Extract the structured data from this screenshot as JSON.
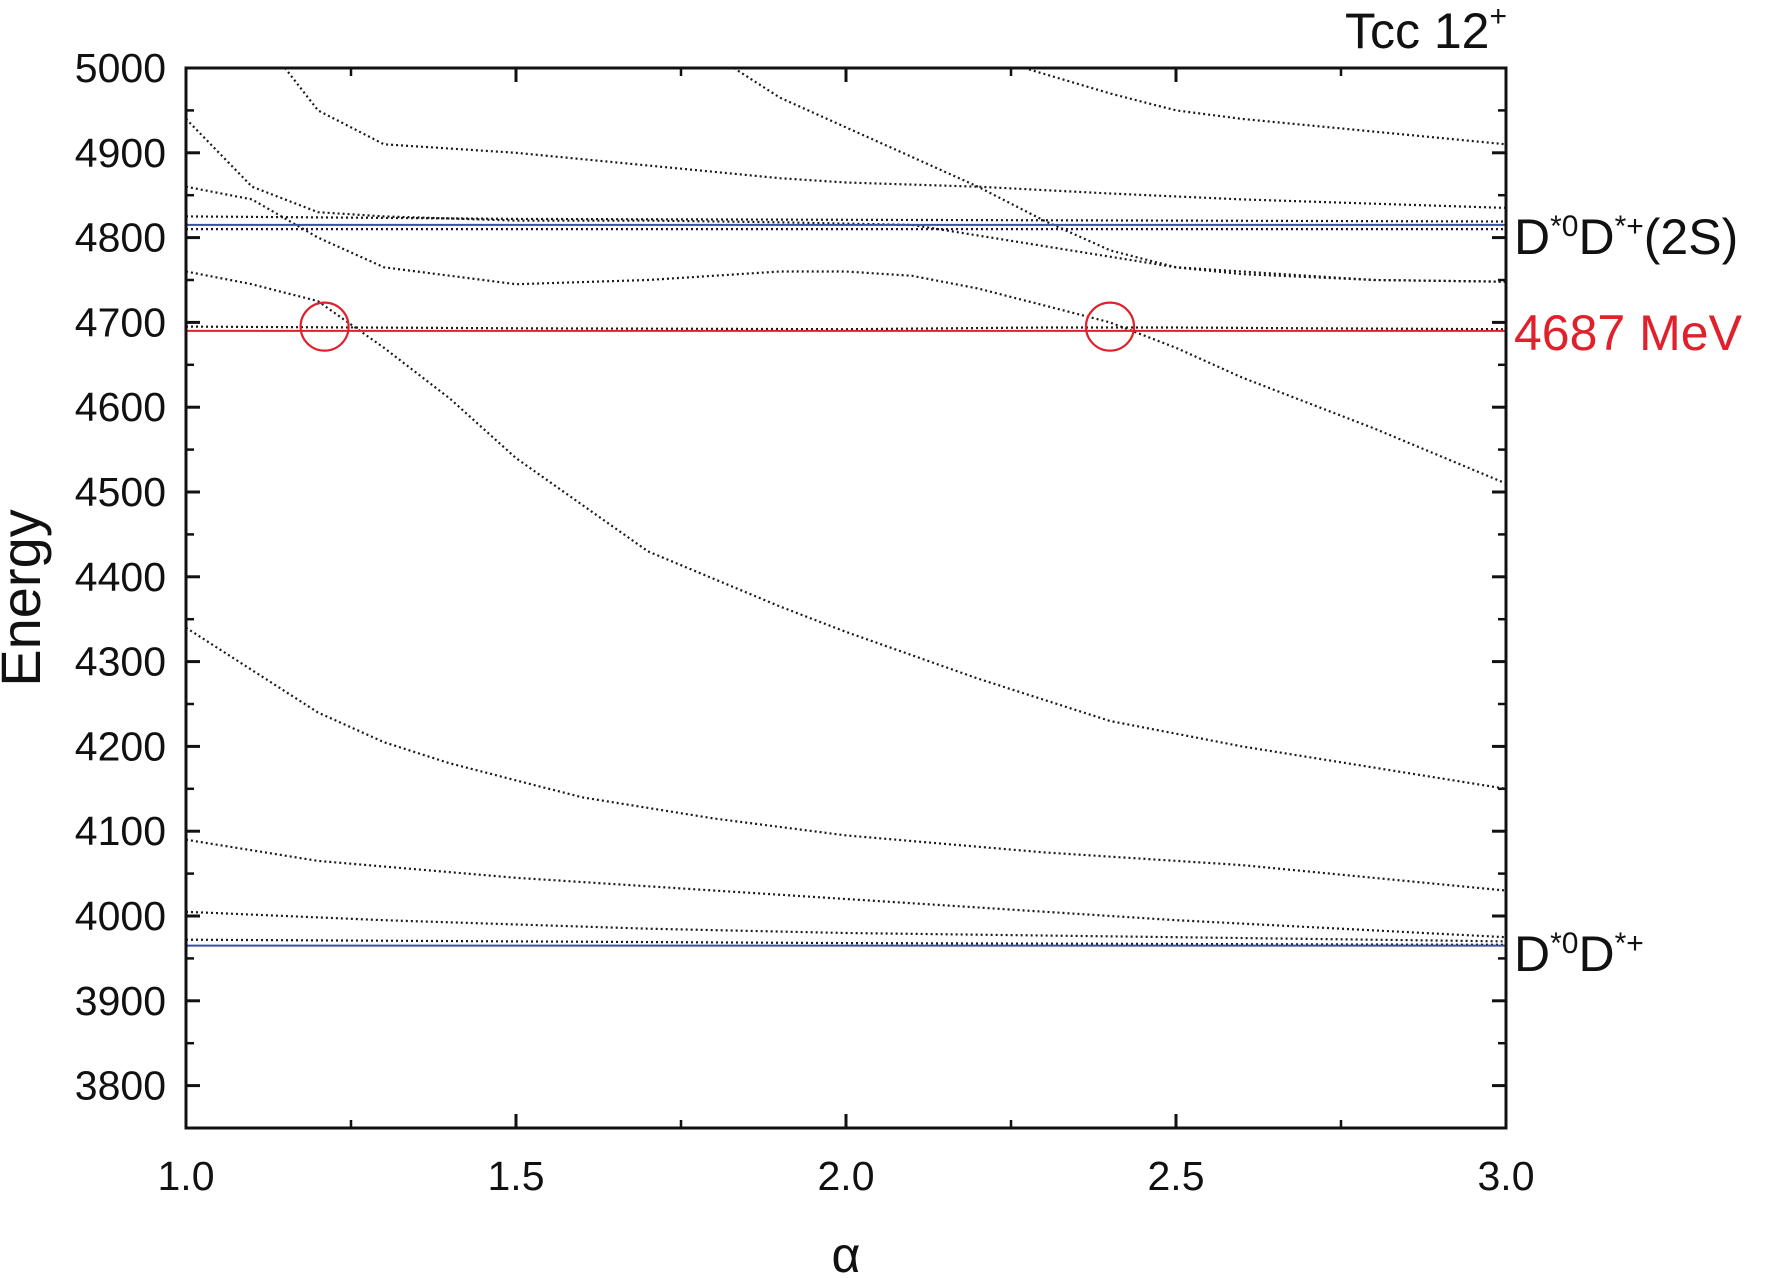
{
  "chart_data": {
    "type": "line",
    "title": "Tcc 12",
    "title_superscript": "+",
    "xlabel": "α",
    "ylabel": "Energy",
    "xlim": [
      1.0,
      3.0
    ],
    "ylim": [
      3750,
      5000
    ],
    "xticks": [
      "1.0",
      "1.5",
      "2.0",
      "2.5",
      "3.0"
    ],
    "yticks": [
      "3800",
      "3900",
      "4000",
      "4100",
      "4200",
      "4300",
      "4400",
      "4500",
      "4600",
      "4700",
      "4800",
      "4900",
      "5000"
    ],
    "grid": false,
    "reference_lines": [
      {
        "y": 4815,
        "color": "#3a4fa0",
        "label": "D*0D*+(2S)"
      },
      {
        "y": 3965,
        "color": "#3a4fa0",
        "label": "D*0D*+"
      },
      {
        "y": 4690,
        "color": "#e0202a",
        "label": "4687 MeV"
      }
    ],
    "right_labels": {
      "upper": {
        "base1": "D",
        "sup1": "*0",
        "base2": "D",
        "sup2": "*+",
        "tail": "(2S)"
      },
      "lower": {
        "base1": "D",
        "sup1": "*0",
        "base2": "D",
        "sup2": "*+",
        "tail": ""
      },
      "red": "4687 MeV"
    },
    "highlight_circles": [
      {
        "x": 1.21,
        "y": 4695
      },
      {
        "x": 2.4,
        "y": 4695
      }
    ],
    "series": [
      {
        "style": "dotted",
        "x": [
          1.0,
          1.1,
          1.2,
          1.3,
          1.4,
          1.6,
          1.8,
          2.0,
          2.3,
          2.6,
          3.0
        ],
        "y": [
          4340,
          4290,
          4240,
          4205,
          4180,
          4140,
          4115,
          4095,
          4075,
          4060,
          4030
        ]
      },
      {
        "style": "dotted",
        "x": [
          1.0,
          1.2,
          1.5,
          2.0,
          2.5,
          3.0
        ],
        "y": [
          4090,
          4065,
          4045,
          4020,
          3995,
          3975
        ]
      },
      {
        "style": "dotted",
        "x": [
          1.0,
          1.3,
          1.7,
          2.0,
          2.5,
          3.0
        ],
        "y": [
          4005,
          3995,
          3985,
          3980,
          3975,
          3970
        ]
      },
      {
        "style": "dotted",
        "x": [
          1.0,
          1.5,
          2.0,
          2.5,
          3.0
        ],
        "y": [
          3972,
          3970,
          3968,
          3967,
          3966
        ]
      },
      {
        "style": "dotted",
        "x": [
          1.0,
          1.1,
          1.2,
          1.3,
          1.4,
          1.5,
          1.7,
          1.9,
          2.0,
          2.2,
          2.4,
          2.6,
          2.8,
          3.0
        ],
        "y": [
          4760,
          4745,
          4725,
          4670,
          4610,
          4540,
          4430,
          4365,
          4335,
          4280,
          4230,
          4200,
          4175,
          4150
        ]
      },
      {
        "style": "dotted",
        "x": [
          1.0,
          1.1,
          1.2,
          1.3,
          1.5,
          1.7,
          1.9,
          2.0,
          2.1,
          2.2,
          2.3,
          2.4,
          2.5,
          2.6,
          2.8,
          3.0
        ],
        "y": [
          4860,
          4845,
          4800,
          4765,
          4745,
          4750,
          4760,
          4760,
          4755,
          4740,
          4720,
          4700,
          4670,
          4635,
          4575,
          4510
        ]
      },
      {
        "style": "dotted",
        "x": [
          1.0,
          1.1,
          1.2,
          1.3,
          1.5,
          1.7,
          1.9,
          2.1,
          2.3,
          2.5,
          2.8,
          3.0
        ],
        "y": [
          4940,
          4860,
          4830,
          4825,
          4820,
          4820,
          4818,
          4815,
          4790,
          4765,
          4750,
          4748
        ]
      },
      {
        "style": "dotted",
        "x": [
          1.0,
          1.5,
          2.0,
          2.3,
          2.5,
          2.7,
          3.0
        ],
        "y": [
          4695,
          4693,
          4692,
          4694,
          4694,
          4693,
          4692
        ]
      },
      {
        "style": "dotted",
        "x": [
          1.0,
          1.5,
          2.0,
          2.5,
          3.0
        ],
        "y": [
          4825,
          4822,
          4821,
          4820,
          4819
        ]
      },
      {
        "style": "dotted",
        "x": [
          1.0,
          1.5,
          2.0,
          2.5,
          3.0
        ],
        "y": [
          4810,
          4810,
          4810,
          4810,
          4810
        ]
      },
      {
        "style": "dotted",
        "x": [
          1.15,
          1.2,
          1.3,
          1.5,
          1.7,
          1.9,
          2.0,
          2.2,
          2.4,
          2.6,
          2.8,
          3.0
        ],
        "y": [
          5000,
          4950,
          4910,
          4900,
          4885,
          4870,
          4865,
          4860,
          4852,
          4845,
          4840,
          4835
        ]
      },
      {
        "style": "dotted",
        "x": [
          1.83,
          1.9,
          2.0,
          2.1,
          2.2,
          2.3,
          2.4,
          2.5,
          2.6,
          2.8,
          3.0
        ],
        "y": [
          5000,
          4965,
          4930,
          4895,
          4860,
          4820,
          4785,
          4765,
          4757,
          4750,
          4748
        ]
      },
      {
        "style": "dotted",
        "x": [
          2.27,
          2.4,
          2.5,
          2.6,
          2.8,
          3.0
        ],
        "y": [
          5000,
          4970,
          4950,
          4940,
          4925,
          4910
        ]
      }
    ]
  }
}
